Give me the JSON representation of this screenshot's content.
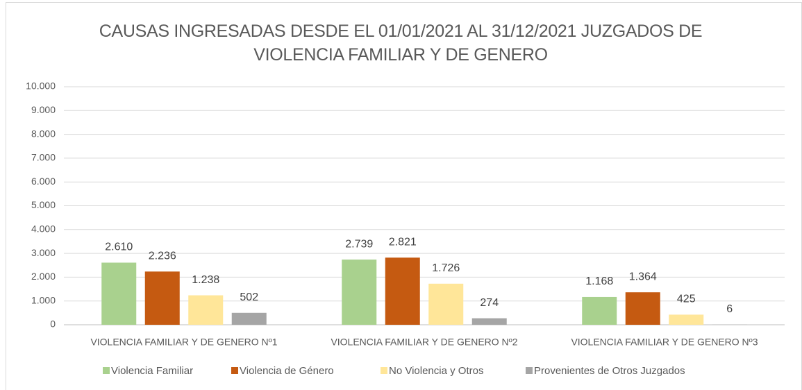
{
  "chart_data": {
    "type": "bar",
    "title": "CAUSAS INGRESADAS DESDE EL 01/01/2021 AL 31/12/2021 JUZGADOS DE VIOLENCIA FAMILIAR Y DE GENERO",
    "categories": [
      "VIOLENCIA FAMILIAR Y DE GENERO Nº1",
      "VIOLENCIA FAMILIAR Y DE GENERO Nº2",
      "VIOLENCIA FAMILIAR Y DE GENERO Nº3"
    ],
    "series": [
      {
        "name": "Violencia Familiar",
        "color": "#a9d18e",
        "values": [
          2610,
          2739,
          1168
        ],
        "value_labels": [
          "2.610",
          "2.739",
          "1.168"
        ]
      },
      {
        "name": "Violencia de Género",
        "color": "#c55a11",
        "values": [
          2236,
          2821,
          1364
        ],
        "value_labels": [
          "2.236",
          "2.821",
          "1.364"
        ]
      },
      {
        "name": "No Violencia y Otros",
        "color": "#ffe699",
        "values": [
          1238,
          1726,
          425
        ],
        "value_labels": [
          "1.238",
          "1.726",
          "425"
        ]
      },
      {
        "name": "Provenientes de Otros Juzgados",
        "color": "#a5a5a5",
        "values": [
          502,
          274,
          6
        ],
        "value_labels": [
          "502",
          "274",
          "6"
        ]
      }
    ],
    "ylim": [
      0,
      10000
    ],
    "yticks": [
      0,
      {
        "value": 1000,
        "label": "1.000"
      },
      {
        "value": 2000,
        "label": "2.000"
      },
      {
        "value": 3000,
        "label": "3.000"
      },
      {
        "value": 4000,
        "label": "4.000"
      },
      {
        "value": 5000,
        "label": "5.000"
      },
      {
        "value": 6000,
        "label": "6.000"
      },
      {
        "value": 7000,
        "label": "7.000"
      },
      {
        "value": 8000,
        "label": "8.000"
      },
      {
        "value": 9000,
        "label": "9.000"
      },
      {
        "value": 10000,
        "label": "10.000"
      }
    ],
    "grid": true,
    "legend": "bottom"
  }
}
